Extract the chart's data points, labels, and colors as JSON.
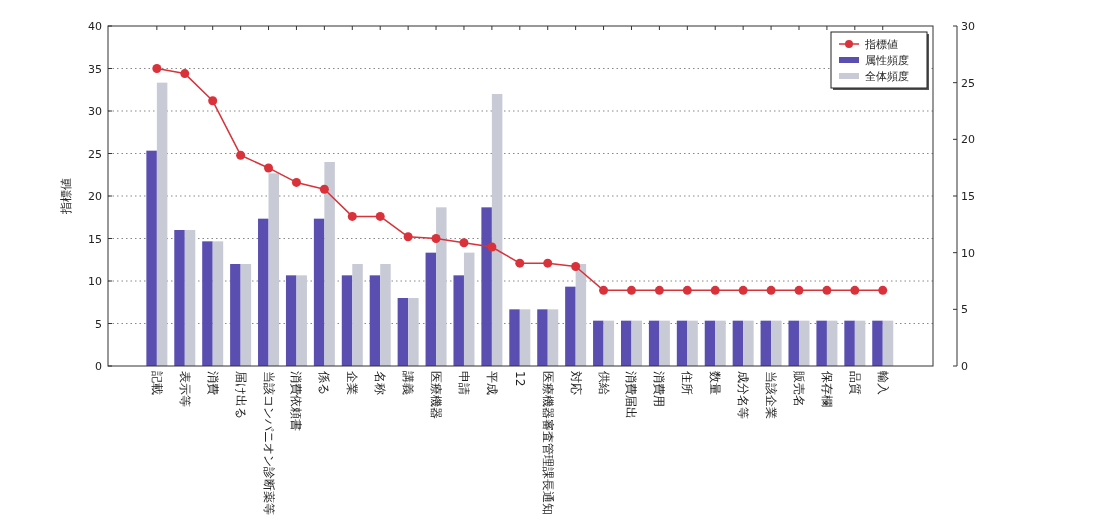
{
  "chart_data": {
    "type": "bar",
    "ylabel": "指標値",
    "categories": [
      "記載",
      "表示等",
      "消費",
      "届け出る",
      "当該コンパニオン診断薬等",
      "消費依頼書",
      "係る",
      "企業",
      "名称",
      "講義",
      "医療機器",
      "申請",
      "平成",
      "12",
      "医療機器審査管理課長通知",
      "対応",
      "供給",
      "消費届出",
      "消費用",
      "住所",
      "数量",
      "成分名等",
      "当該企業",
      "販売名",
      "保存欄",
      "品質",
      "輸入"
    ],
    "series": [
      {
        "name": "指標値",
        "type": "line",
        "axis": "y",
        "color": "#d9323a",
        "marker": "circle",
        "line_style": "solid",
        "values": [
          35,
          34.4,
          31.2,
          24.8,
          23.3,
          21.6,
          20.8,
          17.6,
          17.6,
          15.2,
          15,
          14.5,
          14,
          12.1,
          12.1,
          11.7,
          8.9,
          8.9,
          8.9,
          8.9,
          8.9,
          8.9,
          8.9,
          8.9,
          8.9,
          8.9,
          8.9
        ]
      },
      {
        "name": "属性頻度",
        "axis": "y2",
        "color": "#5a4fb0",
        "values": [
          19,
          12,
          11,
          9,
          13,
          8,
          13,
          8,
          8,
          6,
          10,
          8,
          14,
          5,
          5,
          7,
          4,
          4,
          4,
          4,
          4,
          4,
          4,
          4,
          4,
          4,
          4
        ]
      },
      {
        "name": "全体頻度",
        "axis": "y2",
        "color": "#c8cad6",
        "values": [
          25,
          12,
          11,
          9,
          17,
          8,
          18,
          9,
          9,
          6,
          14,
          10,
          24,
          5,
          5,
          9,
          4,
          4,
          4,
          4,
          4,
          4,
          4,
          4,
          4,
          4,
          4
        ]
      }
    ],
    "ylim": [
      0,
      40
    ],
    "yticks": [
      0,
      5,
      10,
      15,
      20,
      25,
      30,
      35,
      40
    ],
    "y2lim": [
      0,
      30
    ],
    "y2ticks": [
      0,
      5,
      10,
      15,
      20,
      25,
      30
    ],
    "grid": "y",
    "legend": "top right"
  }
}
